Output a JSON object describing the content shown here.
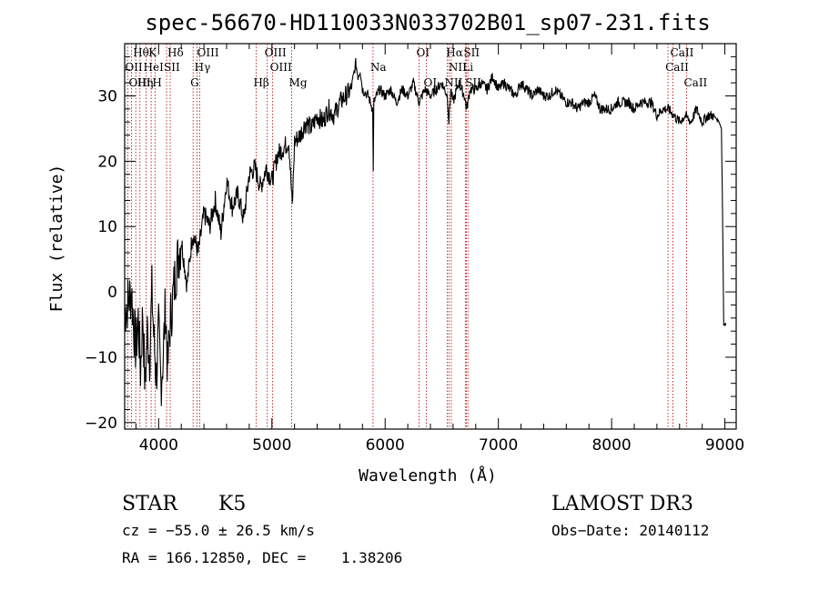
{
  "chart_data": {
    "type": "line",
    "title": "spec-56670-HD110033N033702B01_sp07-231.fits",
    "xlabel": "Wavelength (Å)",
    "ylabel": "Flux (relative)",
    "xlim": [
      3700,
      9100
    ],
    "ylim": [
      -21,
      38
    ],
    "x_ticks": [
      4000,
      5000,
      6000,
      7000,
      8000,
      9000
    ],
    "y_ticks": [
      -20,
      -10,
      0,
      10,
      20,
      30
    ],
    "series": [
      {
        "name": "flux",
        "x": [
          3700,
          3720,
          3740,
          3760,
          3780,
          3800,
          3820,
          3840,
          3860,
          3880,
          3900,
          3920,
          3940,
          3960,
          3980,
          4000,
          4020,
          4040,
          4060,
          4080,
          4100,
          4150,
          4200,
          4250,
          4300,
          4350,
          4400,
          4450,
          4500,
          4550,
          4600,
          4650,
          4700,
          4750,
          4800,
          4850,
          4900,
          4950,
          5000,
          5050,
          5100,
          5150,
          5180,
          5200,
          5250,
          5300,
          5350,
          5400,
          5450,
          5500,
          5550,
          5600,
          5650,
          5700,
          5740,
          5760,
          5780,
          5800,
          5850,
          5890,
          5895,
          5900,
          5950,
          6000,
          6050,
          6100,
          6150,
          6200,
          6250,
          6300,
          6350,
          6400,
          6450,
          6500,
          6550,
          6563,
          6580,
          6600,
          6650,
          6700,
          6720,
          6750,
          6800,
          6850,
          6900,
          6950,
          7000,
          7050,
          7100,
          7150,
          7200,
          7250,
          7300,
          7350,
          7400,
          7450,
          7500,
          7550,
          7600,
          7650,
          7700,
          7750,
          7800,
          7850,
          7900,
          7950,
          8000,
          8050,
          8100,
          8150,
          8200,
          8250,
          8300,
          8350,
          8400,
          8450,
          8500,
          8550,
          8600,
          8650,
          8700,
          8750,
          8800,
          8850,
          8900,
          8950,
          8970,
          8980,
          8990,
          9000,
          9010
        ],
        "values": [
          -3,
          -2,
          -1,
          0,
          -5,
          -9,
          -4,
          -12,
          -3,
          -15,
          -6,
          -10,
          0,
          -8,
          -13,
          -6,
          -14,
          -10,
          -2,
          -12,
          -5,
          3,
          8,
          1,
          9,
          6,
          12,
          10,
          14,
          9,
          17,
          13,
          15,
          11,
          18,
          19,
          16,
          19,
          17,
          21,
          22,
          23,
          13,
          23,
          24,
          26,
          25,
          27,
          26,
          28,
          27,
          29,
          30,
          31,
          35,
          33,
          34,
          31,
          30,
          28,
          19,
          29,
          31,
          30,
          31,
          29,
          31,
          30,
          32,
          29,
          31,
          30,
          31,
          32,
          30,
          26,
          31,
          29,
          32,
          30,
          28,
          31,
          31,
          32,
          31,
          33,
          31,
          32,
          31,
          30,
          32,
          31,
          30,
          31,
          30,
          30,
          31,
          30,
          29,
          29,
          28,
          29,
          29,
          30,
          28,
          28,
          28,
          29,
          29,
          29,
          28,
          29,
          29,
          29,
          27,
          28,
          28,
          27,
          26,
          27,
          26,
          28,
          26,
          27,
          27,
          26,
          25,
          11,
          -5,
          -5,
          -5
        ]
      }
    ],
    "lines_top": [
      {
        "label": "Hθ",
        "wave": 3798
      },
      {
        "label": "K",
        "wave": 3934
      },
      {
        "label": "Hδ",
        "wave": 4102
      },
      {
        "label": "OIII",
        "wave": 4363
      },
      {
        "label": "OIII",
        "wave": 4959
      },
      {
        "label": "OI",
        "wave": 6300
      },
      {
        "label": "Hα",
        "wave": 6563
      },
      {
        "label": "SII",
        "wave": 6717
      },
      {
        "label": "CaII",
        "wave": 8542
      }
    ],
    "lines_mid": [
      {
        "label": "OII",
        "wave": 3727
      },
      {
        "label": "HeI",
        "wave": 3889
      },
      {
        "label": "SII",
        "wave": 4070
      },
      {
        "label": "Hγ",
        "wave": 4340
      },
      {
        "label": "OIII",
        "wave": 5007
      },
      {
        "label": "Na",
        "wave": 5893
      },
      {
        "label": "NII",
        "wave": 6584
      },
      {
        "label": "Li",
        "wave": 6708
      },
      {
        "label": "CaII",
        "wave": 8498
      }
    ],
    "lines_low": [
      {
        "label": "OIII",
        "wave": 3760
      },
      {
        "label": "Hη",
        "wave": 3835
      },
      {
        "label": "H",
        "wave": 3968
      },
      {
        "label": "G",
        "wave": 4304
      },
      {
        "label": "Hβ",
        "wave": 4861
      },
      {
        "label": "Mg",
        "wave": 5175
      },
      {
        "label": "OI",
        "wave": 6364
      },
      {
        "label": "NII",
        "wave": 6548
      },
      {
        "label": "SII",
        "wave": 6731
      },
      {
        "label": "CaII",
        "wave": 8662
      }
    ]
  },
  "info": {
    "class_label": "STAR",
    "subclass": "K5",
    "survey": "LAMOST DR3",
    "redshift": "cz = −55.0 ± 26.5 km/s",
    "obs_date": "Obs−Date: 20140112",
    "coords": "RA = 166.12850, DEC =    1.38206"
  },
  "colors": {
    "line_marker": "#b00000",
    "spectrum": "#000000",
    "axes": "#000000"
  }
}
